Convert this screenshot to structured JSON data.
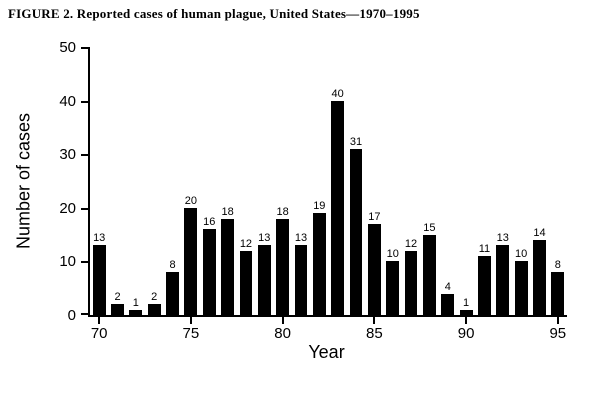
{
  "figure": {
    "title": "FIGURE 2. Reported cases of human plague, United States—1970–1995"
  },
  "chart_data": {
    "type": "bar",
    "title": "Reported cases of human plague, United States, 1970-1995",
    "categories": [
      1970,
      1971,
      1972,
      1973,
      1974,
      1975,
      1976,
      1977,
      1978,
      1979,
      1980,
      1981,
      1982,
      1983,
      1984,
      1985,
      1986,
      1987,
      1988,
      1989,
      1990,
      1991,
      1992,
      1993,
      1994,
      1995
    ],
    "values": [
      13,
      2,
      1,
      2,
      8,
      20,
      16,
      18,
      12,
      13,
      18,
      13,
      19,
      40,
      31,
      17,
      10,
      12,
      15,
      4,
      1,
      11,
      13,
      10,
      14,
      8
    ],
    "xlabel": "Year",
    "ylabel": "Number of cases",
    "ylim": [
      0,
      50
    ],
    "yticks": [
      0,
      10,
      20,
      30,
      40,
      50
    ],
    "xticks": [
      1970,
      1975,
      1980,
      1985,
      1990,
      1995
    ],
    "xtick_labels": [
      "70",
      "75",
      "80",
      "85",
      "90",
      "95"
    ],
    "bar_color": "#000000",
    "data_labels": true,
    "grid": false,
    "legend": false
  }
}
